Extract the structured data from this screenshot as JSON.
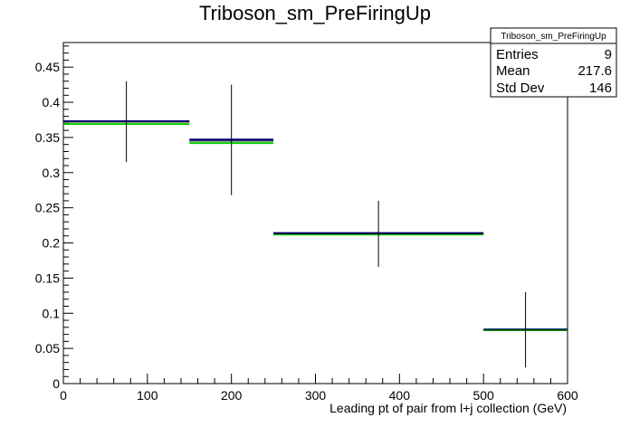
{
  "chart_data": {
    "type": "histogram",
    "title": "Triboson_sm_PreFiringUp",
    "xlabel": "Leading pt of pair from l+j collection (GeV)",
    "ylabel": "",
    "xlim": [
      0,
      600
    ],
    "ylim": [
      0,
      0.485
    ],
    "x_major_ticks": [
      0,
      100,
      200,
      300,
      400,
      500,
      600
    ],
    "x_tick_labels": [
      "0",
      "100",
      "200",
      "300",
      "400",
      "500",
      "600"
    ],
    "y_major_ticks": [
      0,
      0.05,
      0.1,
      0.15,
      0.2,
      0.25,
      0.3,
      0.35,
      0.4,
      0.45
    ],
    "y_tick_labels": [
      "0",
      "0.05",
      "0.1",
      "0.15",
      "0.2",
      "0.25",
      "0.3",
      "0.35",
      "0.4",
      "0.45"
    ],
    "grid": false,
    "series": [
      {
        "color": "#000000",
        "style": "points-with-errors",
        "bins": [
          {
            "x_low": 0,
            "x_high": 150,
            "x_center": 75,
            "y": 0.372,
            "err_low": 0.315,
            "err_high": 0.43
          },
          {
            "x_low": 150,
            "x_high": 250,
            "x_center": 200,
            "y": 0.345,
            "err_low": 0.268,
            "err_high": 0.425
          },
          {
            "x_low": 250,
            "x_high": 500,
            "x_center": 375,
            "y": 0.213,
            "err_low": 0.166,
            "err_high": 0.26
          },
          {
            "x_low": 500,
            "x_high": 600,
            "x_center": 550,
            "y": 0.076,
            "err_low": 0.023,
            "err_high": 0.13
          }
        ]
      },
      {
        "color": "#00008b",
        "style": "step",
        "bins": [
          {
            "x_low": 0,
            "x_high": 150,
            "y": 0.373
          },
          {
            "x_low": 150,
            "x_high": 250,
            "y": 0.347
          },
          {
            "x_low": 250,
            "x_high": 500,
            "y": 0.214
          },
          {
            "x_low": 500,
            "x_high": 600,
            "y": 0.077
          }
        ]
      },
      {
        "color": "#00cc00",
        "style": "step",
        "bins": [
          {
            "x_low": 0,
            "x_high": 150,
            "y": 0.369
          },
          {
            "x_low": 150,
            "x_high": 250,
            "y": 0.342
          },
          {
            "x_low": 250,
            "x_high": 500,
            "y": 0.212
          },
          {
            "x_low": 500,
            "x_high": 600,
            "y": 0.076
          }
        ]
      }
    ],
    "stats_box": {
      "title": "Triboson_sm_PreFiringUp",
      "rows": [
        {
          "label": "Entries",
          "value": "9"
        },
        {
          "label": "Mean",
          "value": "217.6"
        },
        {
          "label": "Std Dev",
          "value": "146"
        }
      ],
      "placement": "top-right"
    }
  }
}
